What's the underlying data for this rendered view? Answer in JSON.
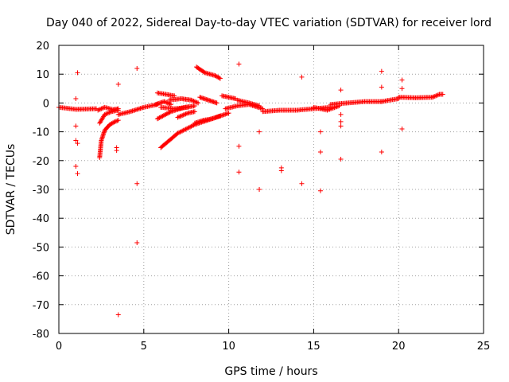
{
  "chart_data": {
    "type": "scatter",
    "title": "Day 040 of 2022, Sidereal Day-to-day VTEC variation (SDTVAR) for receiver lord",
    "xlabel": "GPS time / hours",
    "ylabel": "SDTVAR / TECUs",
    "xlim": [
      0,
      25
    ],
    "ylim": [
      -80,
      20
    ],
    "xticks": [
      0,
      5,
      10,
      15,
      20,
      25
    ],
    "yticks": [
      -80,
      -70,
      -60,
      -50,
      -40,
      -30,
      -20,
      -10,
      0,
      10,
      20
    ],
    "grid": true,
    "marker": "+",
    "color": "#ff0000",
    "tracks": [
      {
        "x": [
          0.0,
          1.0,
          2.2
        ],
        "y": [
          -1.5,
          -2.2,
          -2.0
        ]
      },
      {
        "x": [
          2.3,
          2.7,
          3.2,
          3.5
        ],
        "y": [
          -2.5,
          -1.5,
          -2.3,
          -2.0
        ]
      },
      {
        "x": [
          2.4,
          2.5,
          2.7,
          3.0,
          3.3,
          3.5
        ],
        "y": [
          -19.0,
          -13.0,
          -9.5,
          -7.5,
          -6.5,
          -6.0
        ]
      },
      {
        "x": [
          2.4,
          2.7,
          3.1,
          3.5
        ],
        "y": [
          -7.0,
          -4.0,
          -3.0,
          -2.5
        ]
      },
      {
        "x": [
          3.5,
          4.2,
          5.0,
          5.8
        ],
        "y": [
          -4.0,
          -3.0,
          -1.5,
          -0.5
        ]
      },
      {
        "x": [
          5.7,
          6.2,
          6.6
        ],
        "y": [
          -0.5,
          0.5,
          -0.5
        ]
      },
      {
        "x": [
          5.8,
          6.3,
          6.8
        ],
        "y": [
          3.5,
          3.0,
          2.5
        ]
      },
      {
        "x": [
          6.0,
          7.0,
          8.0,
          9.0,
          10.0
        ],
        "y": [
          -15.5,
          -10.5,
          -7.5,
          -5.5,
          -3.5
        ]
      },
      {
        "x": [
          5.8,
          6.6,
          7.4,
          8.0
        ],
        "y": [
          -5.5,
          -3.0,
          -1.5,
          -1.0
        ]
      },
      {
        "x": [
          6.0,
          6.8,
          7.6
        ],
        "y": [
          -1.5,
          -2.0,
          -1.5
        ]
      },
      {
        "x": [
          6.5,
          7.2,
          7.8,
          8.2
        ],
        "y": [
          1.0,
          1.5,
          1.0,
          0.0
        ]
      },
      {
        "x": [
          7.0,
          7.6,
          8.0
        ],
        "y": [
          -5.0,
          -3.5,
          -3.0
        ]
      },
      {
        "x": [
          8.0,
          8.5,
          9.0,
          9.5
        ],
        "y": [
          -7.0,
          -6.0,
          -5.5,
          -4.5
        ]
      },
      {
        "x": [
          8.1,
          8.6,
          9.2,
          9.5
        ],
        "y": [
          12.5,
          10.5,
          9.5,
          8.5
        ]
      },
      {
        "x": [
          8.3,
          8.8,
          9.3
        ],
        "y": [
          2.0,
          1.0,
          0.0
        ]
      },
      {
        "x": [
          9.6,
          10.0,
          10.4
        ],
        "y": [
          2.5,
          2.0,
          1.5
        ]
      },
      {
        "x": [
          9.8,
          10.5,
          11.2,
          12.0
        ],
        "y": [
          -2.0,
          -1.0,
          -0.5,
          -2.0
        ]
      },
      {
        "x": [
          10.5,
          11.2,
          11.8
        ],
        "y": [
          1.0,
          0.0,
          -1.0
        ]
      },
      {
        "x": [
          12.0,
          13.0,
          14.0,
          15.0,
          16.0
        ],
        "y": [
          -3.0,
          -2.5,
          -2.5,
          -2.0,
          -1.5
        ]
      },
      {
        "x": [
          15.0,
          15.8,
          16.5
        ],
        "y": [
          -1.5,
          -2.5,
          -1.0
        ]
      },
      {
        "x": [
          16.0,
          17.0,
          18.0,
          19.0
        ],
        "y": [
          -0.5,
          0.0,
          0.5,
          0.5
        ]
      },
      {
        "x": [
          19.0,
          19.5,
          20.0
        ],
        "y": [
          0.5,
          1.0,
          1.5
        ]
      },
      {
        "x": [
          20.0,
          21.0,
          22.0
        ],
        "y": [
          2.0,
          1.8,
          2.0
        ]
      },
      {
        "x": [
          22.0,
          22.4,
          22.6
        ],
        "y": [
          2.0,
          3.0,
          3.0
        ]
      }
    ],
    "points": [
      {
        "x": 1.0,
        "y": 1.5
      },
      {
        "x": 1.0,
        "y": -8.0
      },
      {
        "x": 1.0,
        "y": -13.0
      },
      {
        "x": 1.1,
        "y": -14.0
      },
      {
        "x": 1.0,
        "y": -22.0
      },
      {
        "x": 1.1,
        "y": -24.5
      },
      {
        "x": 1.1,
        "y": 10.5
      },
      {
        "x": 3.4,
        "y": -15.5
      },
      {
        "x": 3.4,
        "y": -16.5
      },
      {
        "x": 3.5,
        "y": 6.5
      },
      {
        "x": 3.5,
        "y": -73.5
      },
      {
        "x": 4.6,
        "y": 12.0
      },
      {
        "x": 4.6,
        "y": -28.0
      },
      {
        "x": 4.6,
        "y": -48.5
      },
      {
        "x": 10.6,
        "y": 13.5
      },
      {
        "x": 10.6,
        "y": -15.0
      },
      {
        "x": 10.6,
        "y": -24.0
      },
      {
        "x": 11.8,
        "y": -10.0
      },
      {
        "x": 11.8,
        "y": -30.0
      },
      {
        "x": 13.1,
        "y": -22.5
      },
      {
        "x": 13.1,
        "y": -23.5
      },
      {
        "x": 14.3,
        "y": 9.0
      },
      {
        "x": 14.3,
        "y": -28.0
      },
      {
        "x": 15.4,
        "y": -10.0
      },
      {
        "x": 15.4,
        "y": -17.0
      },
      {
        "x": 15.4,
        "y": -30.5
      },
      {
        "x": 16.6,
        "y": 4.5
      },
      {
        "x": 16.6,
        "y": -4.0
      },
      {
        "x": 16.6,
        "y": -6.5
      },
      {
        "x": 16.6,
        "y": -8.0
      },
      {
        "x": 16.6,
        "y": -19.5
      },
      {
        "x": 19.0,
        "y": 11.0
      },
      {
        "x": 19.0,
        "y": 5.5
      },
      {
        "x": 19.0,
        "y": -17.0
      },
      {
        "x": 20.2,
        "y": 8.0
      },
      {
        "x": 20.2,
        "y": 5.0
      },
      {
        "x": 20.2,
        "y": -9.0
      }
    ]
  }
}
